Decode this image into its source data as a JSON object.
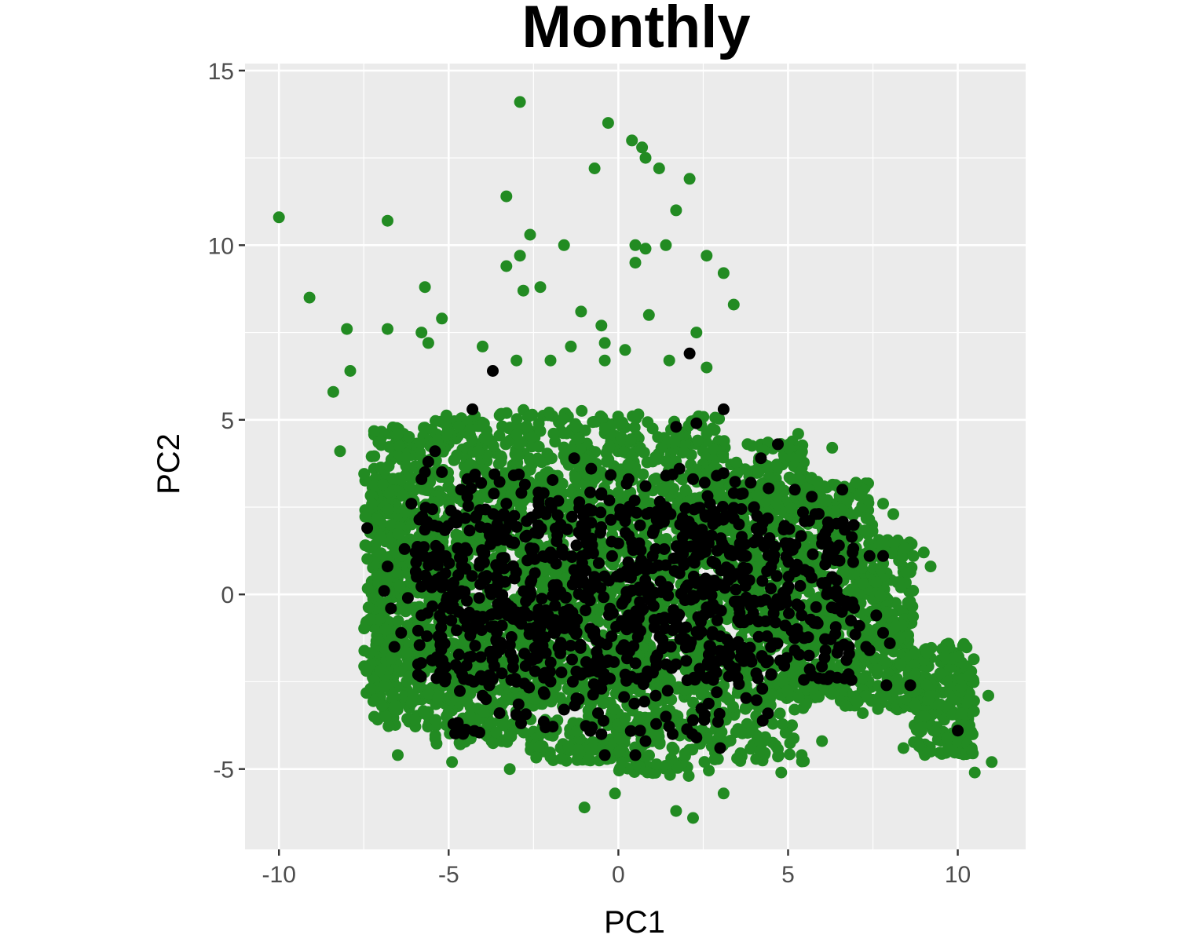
{
  "chart_data": {
    "type": "scatter",
    "title": "Monthly",
    "xlabel": "PC1",
    "ylabel": "PC2",
    "xlim": [
      -11,
      12
    ],
    "ylim": [
      -7.3,
      15.2
    ],
    "x_ticks": [
      -10,
      -5,
      0,
      5,
      10
    ],
    "y_ticks": [
      -5,
      0,
      5,
      10,
      15
    ],
    "x_tick_labels": [
      "-10",
      "-5",
      "0",
      "5",
      "10"
    ],
    "y_tick_labels": [
      "-5",
      "0",
      "5",
      "10",
      "15"
    ],
    "grid": true,
    "legend": "none",
    "colors": {
      "panel_background": "#ebebeb",
      "grid_line": "#ffffff",
      "series_green": "#228b22",
      "series_black": "#000000"
    },
    "series": [
      {
        "color": "#228b22",
        "points": [
          [
            -10.0,
            10.8
          ],
          [
            -9.1,
            8.5
          ],
          [
            -6.8,
            10.7
          ],
          [
            -6.8,
            7.6
          ],
          [
            -8.0,
            7.6
          ],
          [
            -5.7,
            8.8
          ],
          [
            -5.2,
            7.9
          ],
          [
            -3.3,
            11.4
          ],
          [
            -2.9,
            14.1
          ],
          [
            -2.6,
            10.3
          ],
          [
            -2.9,
            9.7
          ],
          [
            -3.3,
            9.4
          ],
          [
            -2.8,
            8.7
          ],
          [
            -2.3,
            8.8
          ],
          [
            -1.6,
            10.0
          ],
          [
            -0.7,
            12.2
          ],
          [
            -0.3,
            13.5
          ],
          [
            0.4,
            13.0
          ],
          [
            0.7,
            12.8
          ],
          [
            0.8,
            12.5
          ],
          [
            1.2,
            12.2
          ],
          [
            2.1,
            11.9
          ],
          [
            1.7,
            11.0
          ],
          [
            1.4,
            10.0
          ],
          [
            0.5,
            10.0
          ],
          [
            0.8,
            9.9
          ],
          [
            0.5,
            9.5
          ],
          [
            2.6,
            9.7
          ],
          [
            3.1,
            9.2
          ],
          [
            3.4,
            8.3
          ],
          [
            0.9,
            8.0
          ],
          [
            -1.1,
            8.1
          ],
          [
            -0.5,
            7.7
          ],
          [
            -0.4,
            7.2
          ],
          [
            -1.4,
            7.1
          ],
          [
            0.2,
            7.0
          ],
          [
            -0.4,
            6.7
          ],
          [
            2.3,
            7.5
          ],
          [
            1.5,
            6.7
          ],
          [
            2.6,
            6.5
          ],
          [
            -3.0,
            6.7
          ],
          [
            -2.0,
            6.7
          ],
          [
            -4.0,
            7.1
          ],
          [
            -5.6,
            7.2
          ],
          [
            -5.8,
            7.5
          ],
          [
            -8.2,
            4.1
          ],
          [
            -8.4,
            5.8
          ],
          [
            -7.9,
            6.4
          ],
          [
            -6.5,
            4.6
          ],
          [
            -3.2,
            -5.0
          ],
          [
            -4.9,
            -4.8
          ],
          [
            -6.5,
            -4.6
          ],
          [
            -1.0,
            -6.1
          ],
          [
            -0.1,
            -5.7
          ],
          [
            1.7,
            -6.2
          ],
          [
            2.2,
            -6.4
          ],
          [
            3.1,
            -5.7
          ],
          [
            4.8,
            -5.1
          ],
          [
            5.4,
            -4.6
          ],
          [
            6.0,
            -4.2
          ],
          [
            7.2,
            -3.4
          ],
          [
            8.4,
            -4.4
          ],
          [
            9.2,
            -4.5
          ],
          [
            10.5,
            -5.1
          ],
          [
            11.0,
            -4.8
          ],
          [
            10.9,
            -2.9
          ],
          [
            7.8,
            2.6
          ],
          [
            8.1,
            2.3
          ],
          [
            7.0,
            3.2
          ],
          [
            6.3,
            4.2
          ],
          [
            5.3,
            4.6
          ],
          [
            9.2,
            0.8
          ],
          [
            9.0,
            1.2
          ]
        ],
        "regions": [
          {
            "x": [
              -7.3,
              -5.5
            ],
            "y": [
              -3.8,
              4.8
            ],
            "n": 420
          },
          {
            "x": [
              -5.5,
              -3.0
            ],
            "y": [
              -4.3,
              5.2
            ],
            "n": 520
          },
          {
            "x": [
              -3.0,
              0.0
            ],
            "y": [
              -4.8,
              5.3
            ],
            "n": 600
          },
          {
            "x": [
              0.0,
              3.0
            ],
            "y": [
              -5.2,
              5.2
            ],
            "n": 600
          },
          {
            "x": [
              3.0,
              5.5
            ],
            "y": [
              -4.8,
              4.4
            ],
            "n": 460
          },
          {
            "x": [
              5.5,
              7.5
            ],
            "y": [
              -3.2,
              3.2
            ],
            "n": 340
          },
          {
            "x": [
              7.5,
              8.7
            ],
            "y": [
              -3.3,
              1.6
            ],
            "n": 200
          },
          {
            "x": [
              8.7,
              10.5
            ],
            "y": [
              -4.6,
              -1.4
            ],
            "n": 200
          },
          {
            "x": [
              -7.5,
              6.5
            ],
            "y": [
              -3.0,
              3.5
            ],
            "n": 900
          }
        ]
      },
      {
        "color": "#000000",
        "points": [
          [
            2.1,
            6.9
          ],
          [
            -3.7,
            6.4
          ],
          [
            -4.3,
            5.3
          ],
          [
            3.1,
            5.3
          ],
          [
            1.7,
            4.8
          ],
          [
            2.3,
            4.9
          ],
          [
            4.7,
            4.3
          ],
          [
            4.2,
            3.9
          ],
          [
            -5.4,
            4.1
          ],
          [
            -5.6,
            3.8
          ],
          [
            -5.7,
            3.5
          ],
          [
            -5.8,
            3.3
          ],
          [
            -5.2,
            3.5
          ],
          [
            -1.3,
            3.9
          ],
          [
            -0.8,
            3.6
          ],
          [
            0.3,
            3.3
          ],
          [
            0.8,
            3.1
          ],
          [
            1.8,
            3.6
          ],
          [
            2.2,
            3.3
          ],
          [
            2.9,
            3.4
          ],
          [
            -3.3,
            2.6
          ],
          [
            -2.2,
            2.9
          ],
          [
            -0.5,
            2.9
          ],
          [
            3.4,
            2.9
          ],
          [
            3.9,
            3.2
          ],
          [
            5.2,
            3.0
          ],
          [
            5.7,
            2.8
          ],
          [
            6.6,
            3.0
          ],
          [
            -6.1,
            2.6
          ],
          [
            -4.2,
            2.2
          ],
          [
            -2.7,
            2.1
          ],
          [
            -1.7,
            2.0
          ],
          [
            0.2,
            2.1
          ],
          [
            1.4,
            2.5
          ],
          [
            2.7,
            2.6
          ],
          [
            4.0,
            2.5
          ],
          [
            5.8,
            2.3
          ],
          [
            6.2,
            2.0
          ],
          [
            -7.4,
            1.9
          ],
          [
            -3.5,
            1.8
          ],
          [
            -1.8,
            1.7
          ],
          [
            -0.8,
            1.6
          ],
          [
            0.4,
            1.5
          ],
          [
            2.2,
            1.8
          ],
          [
            4.1,
            1.6
          ],
          [
            6.5,
            1.4
          ],
          [
            6.9,
            1.2
          ],
          [
            7.4,
            1.1
          ],
          [
            7.8,
            1.1
          ],
          [
            -6.3,
            1.3
          ],
          [
            -5.4,
            1.1
          ],
          [
            -4.6,
            1.0
          ],
          [
            -2.0,
            1.2
          ],
          [
            1.1,
            1.3
          ],
          [
            2.5,
            1.2
          ],
          [
            3.6,
            1.3
          ],
          [
            -6.8,
            0.8
          ],
          [
            -5.1,
            0.6
          ],
          [
            -3.6,
            0.5
          ],
          [
            -1.3,
            0.7
          ],
          [
            0.6,
            0.8
          ],
          [
            1.8,
            0.6
          ],
          [
            4.5,
            0.8
          ],
          [
            6.3,
            0.5
          ],
          [
            -6.9,
            0.1
          ],
          [
            -6.2,
            -0.1
          ],
          [
            -5.5,
            0.2
          ],
          [
            -4.1,
            -0.1
          ],
          [
            -2.6,
            0.1
          ],
          [
            -0.9,
            0.0
          ],
          [
            0.9,
            0.2
          ],
          [
            2.5,
            0.0
          ],
          [
            4.2,
            -0.2
          ],
          [
            6.4,
            -0.4
          ],
          [
            7.6,
            -0.6
          ],
          [
            -6.7,
            -0.4
          ],
          [
            -5.8,
            -0.6
          ],
          [
            -4.7,
            -0.5
          ],
          [
            -3.1,
            -0.7
          ],
          [
            -1.6,
            -0.5
          ],
          [
            0.3,
            -0.6
          ],
          [
            1.6,
            -0.7
          ],
          [
            3.7,
            -0.8
          ],
          [
            5.4,
            -0.6
          ],
          [
            7.1,
            -0.9
          ],
          [
            -6.4,
            -1.1
          ],
          [
            -5.3,
            -1.2
          ],
          [
            -3.6,
            -1.3
          ],
          [
            -1.9,
            -1.1
          ],
          [
            -0.2,
            -1.2
          ],
          [
            1.3,
            -1.3
          ],
          [
            3.0,
            -1.2
          ],
          [
            4.6,
            -1.4
          ],
          [
            7.3,
            -1.5
          ],
          [
            7.8,
            -1.1
          ],
          [
            8.0,
            -1.4
          ],
          [
            -6.6,
            -1.5
          ],
          [
            -4.4,
            -1.8
          ],
          [
            -2.3,
            -1.7
          ],
          [
            -0.6,
            -1.8
          ],
          [
            2.0,
            -1.9
          ],
          [
            3.6,
            -1.8
          ],
          [
            5.2,
            -1.6
          ],
          [
            6.8,
            -1.7
          ],
          [
            -4.6,
            -2.3
          ],
          [
            -3.0,
            -2.5
          ],
          [
            -1.1,
            -2.3
          ],
          [
            0.7,
            -2.4
          ],
          [
            2.6,
            -2.4
          ],
          [
            4.5,
            -2.3
          ],
          [
            5.9,
            -2.4
          ],
          [
            7.4,
            -1.6
          ],
          [
            -4.0,
            -2.9
          ],
          [
            -2.2,
            -2.8
          ],
          [
            -0.5,
            -2.7
          ],
          [
            1.1,
            -2.9
          ],
          [
            2.9,
            -2.8
          ],
          [
            -3.5,
            -3.4
          ],
          [
            -1.6,
            -3.3
          ],
          [
            -0.6,
            -3.4
          ],
          [
            1.4,
            -3.5
          ],
          [
            2.2,
            -3.6
          ],
          [
            -0.5,
            -4.0
          ],
          [
            0.8,
            -4.2
          ],
          [
            1.6,
            -4.0
          ],
          [
            2.3,
            -4.1
          ],
          [
            3.0,
            -4.4
          ],
          [
            -0.4,
            -4.6
          ],
          [
            0.5,
            -4.6
          ],
          [
            7.9,
            -2.6
          ],
          [
            8.6,
            -2.6
          ],
          [
            10.0,
            -3.9
          ],
          [
            6.1,
            -1.6
          ],
          [
            3.3,
            -1.5
          ],
          [
            -5.9,
            -2.0
          ],
          [
            -3.9,
            -3.0
          ]
        ],
        "regions": [
          {
            "x": [
              -6.0,
              7.0
            ],
            "y": [
              -2.5,
              2.5
            ],
            "n": 650
          },
          {
            "x": [
              -5.0,
              4.5
            ],
            "y": [
              -4.0,
              3.5
            ],
            "n": 300
          }
        ]
      }
    ]
  }
}
